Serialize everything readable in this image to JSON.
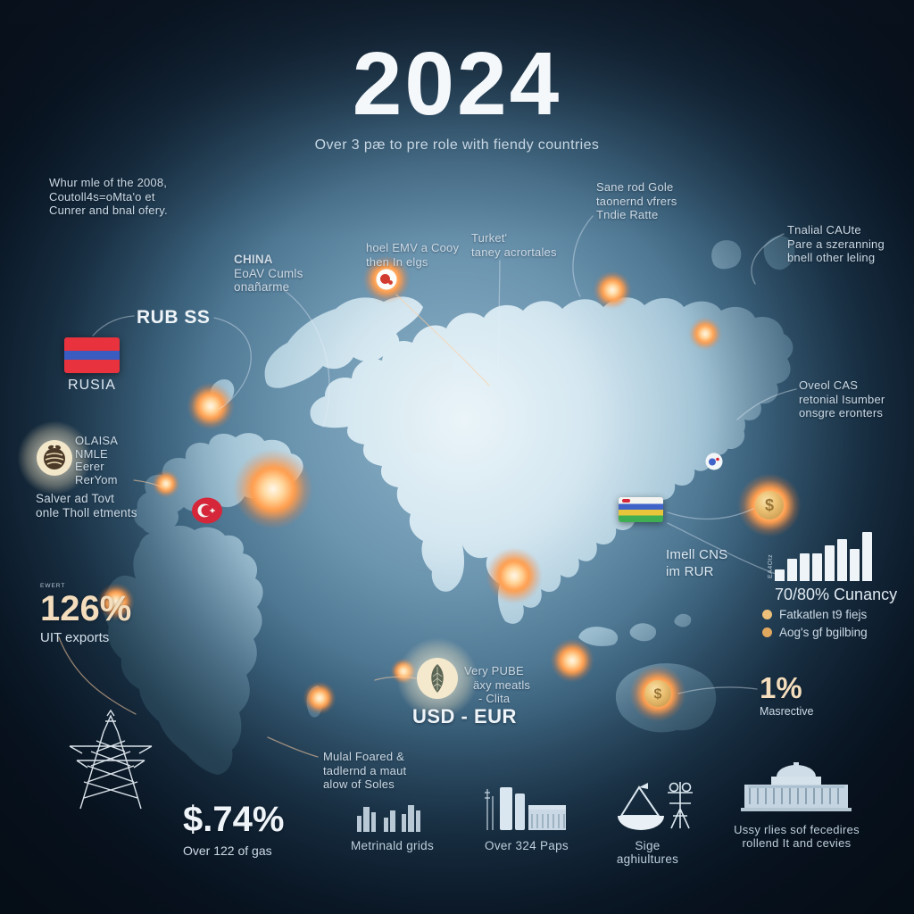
{
  "title": {
    "year": "2024",
    "subtitle": "Over 3 pæ to pre role with fiendy countries"
  },
  "annotations": {
    "top_left": {
      "lines": [
        "Whur mle of the 2008,",
        "Coutoll4s=oMta'o et",
        "Cunrer and bnal ofery."
      ]
    },
    "china": {
      "lines": [
        "CHINA",
        "EoAV Cumls",
        "onañarme"
      ]
    },
    "rub_label": "RUB SS",
    "russia": {
      "flag_label": "RUSIA"
    },
    "olaisa": {
      "lines": [
        "OLAISA",
        "NMLE",
        "Eerer",
        "RerYom"
      ]
    },
    "silver": {
      "lines": [
        "Salver ad Tovt",
        "onle Tholl etments"
      ]
    },
    "exports": {
      "tiny": "EWERT",
      "value": "126%",
      "label": "UIT exports"
    },
    "center": {
      "lines": [
        "hoel EMV a Cooy",
        "then In elgs"
      ]
    },
    "turkey": {
      "lines": [
        "Turket'",
        "taney acrortales"
      ]
    },
    "top_right": {
      "lines": [
        "Sane rod Gole",
        "taonernd vfrers",
        "Tndie Ratte"
      ]
    },
    "right_upper": {
      "lines": [
        "Tnalial CAUte",
        "Pare a szeranning",
        "bnell other leling"
      ]
    },
    "right_mid": {
      "lines": [
        "Oveol CAS",
        "retonial Isumber",
        "onsgre eronters"
      ]
    },
    "cns": {
      "lines": [
        "Imell CNS",
        "im RUR"
      ]
    },
    "one_pct": {
      "value": "1%",
      "label": "Masrective"
    },
    "pube": {
      "lines": [
        "Very PUBE",
        "äxy meatls",
        "- Clita"
      ]
    },
    "usd_eur": "USD - EUR",
    "mulal": {
      "lines": [
        "Mulal Foared &",
        "tadlernd a maut",
        "alow of Soles"
      ]
    },
    "gas": {
      "value": "$.74%",
      "label": "Over 122 of gas"
    },
    "grids_label": "Metrinald grids",
    "paps_label": "Over 324 Paps",
    "agri_label": "Sige aghiultures",
    "services": {
      "lines": [
        "Ussy rlies sof fecedires",
        "rollend It and cevies"
      ]
    },
    "coin_symbol": "$"
  },
  "chart_data": {
    "type": "bar",
    "categories": [
      "1",
      "2",
      "3",
      "4",
      "5",
      "6",
      "7",
      "8"
    ],
    "values": [
      13,
      25,
      31,
      31,
      40,
      47,
      36,
      55
    ],
    "title": "70/80% Cunancy",
    "axis_label": "EA4Otz",
    "xlabel": "",
    "ylabel": "",
    "ylim": [
      0,
      60
    ],
    "grid": false,
    "legend": [
      "Fatkatlen t9 fiejs",
      "Aog's gf bgilbing"
    ],
    "legend_position": "bottom"
  },
  "colors": {
    "background_dark": "#0a1828",
    "background_center": "#8fb4ca",
    "land_light": "#eef7fb",
    "land_dark": "#33596f",
    "glow_accent": "#ff9d4d",
    "cream_stat": "#f3ddbd",
    "coin_gold": "#ecc275",
    "turkey_red": "#d6273a",
    "flag_red": "#e8323e",
    "flag_blue": "#3a5bbf",
    "cns_blue": "#3f63c9",
    "cns_yellow": "#e8c53a",
    "cns_green": "#3fae52",
    "text": "#ccd9e4",
    "bar_white": "#eef4f8"
  }
}
